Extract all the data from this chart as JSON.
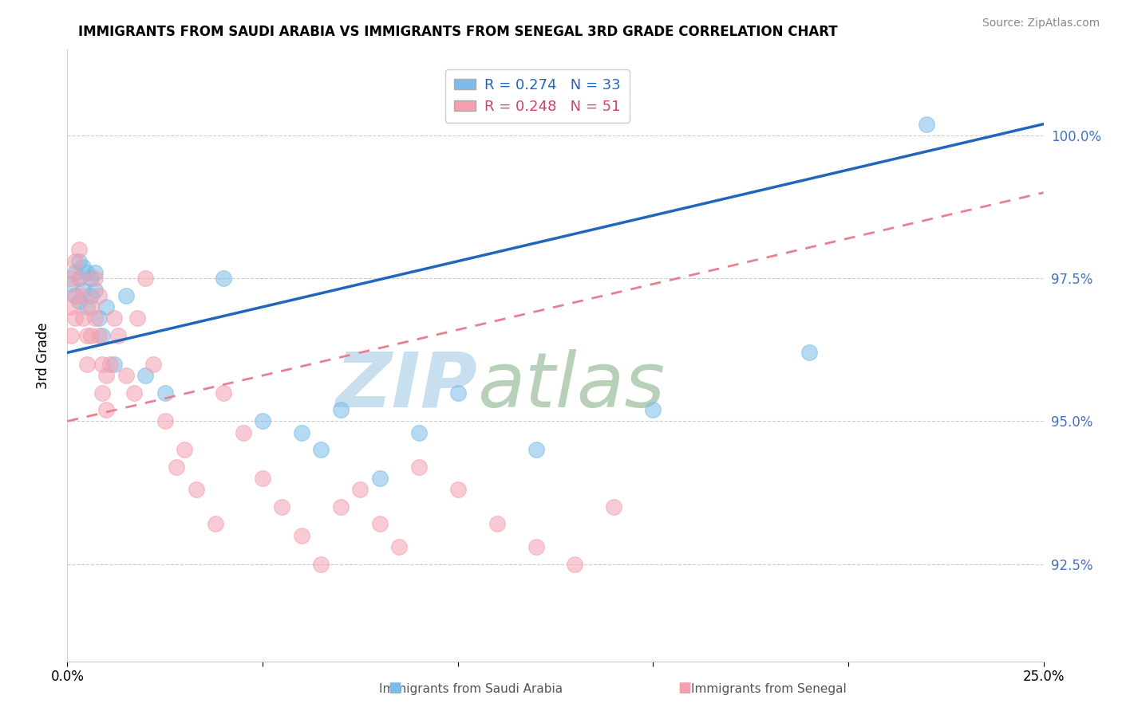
{
  "title": "IMMIGRANTS FROM SAUDI ARABIA VS IMMIGRANTS FROM SENEGAL 3RD GRADE CORRELATION CHART",
  "source": "Source: ZipAtlas.com",
  "ylabel": "3rd Grade",
  "ytick_labels": [
    "92.5%",
    "95.0%",
    "97.5%",
    "100.0%"
  ],
  "ytick_values": [
    0.925,
    0.95,
    0.975,
    1.0
  ],
  "xlim": [
    0.0,
    0.25
  ],
  "ylim": [
    0.908,
    1.015
  ],
  "R_saudi": 0.274,
  "N_saudi": 33,
  "R_senegal": 0.248,
  "N_senegal": 51,
  "saudi_color": "#7bbde8",
  "senegal_color": "#f4a0b0",
  "saudi_x": [
    0.001,
    0.002,
    0.002,
    0.003,
    0.003,
    0.003,
    0.004,
    0.004,
    0.005,
    0.005,
    0.006,
    0.006,
    0.007,
    0.007,
    0.008,
    0.009,
    0.01,
    0.012,
    0.015,
    0.02,
    0.025,
    0.04,
    0.05,
    0.06,
    0.065,
    0.07,
    0.08,
    0.09,
    0.1,
    0.12,
    0.15,
    0.19,
    0.22
  ],
  "saudi_y": [
    0.974,
    0.976,
    0.972,
    0.978,
    0.975,
    0.971,
    0.977,
    0.973,
    0.976,
    0.97,
    0.975,
    0.972,
    0.976,
    0.973,
    0.968,
    0.965,
    0.97,
    0.96,
    0.972,
    0.958,
    0.955,
    0.975,
    0.95,
    0.948,
    0.945,
    0.952,
    0.94,
    0.948,
    0.955,
    0.945,
    0.952,
    0.962,
    1.002
  ],
  "senegal_x": [
    0.001,
    0.001,
    0.001,
    0.002,
    0.002,
    0.002,
    0.003,
    0.003,
    0.004,
    0.004,
    0.005,
    0.005,
    0.006,
    0.006,
    0.007,
    0.007,
    0.008,
    0.008,
    0.009,
    0.009,
    0.01,
    0.01,
    0.011,
    0.012,
    0.013,
    0.015,
    0.017,
    0.018,
    0.02,
    0.022,
    0.025,
    0.028,
    0.03,
    0.033,
    0.038,
    0.04,
    0.045,
    0.05,
    0.055,
    0.06,
    0.065,
    0.07,
    0.075,
    0.08,
    0.085,
    0.09,
    0.1,
    0.11,
    0.12,
    0.13,
    0.14
  ],
  "senegal_y": [
    0.975,
    0.97,
    0.965,
    0.978,
    0.972,
    0.968,
    0.98,
    0.975,
    0.972,
    0.968,
    0.965,
    0.96,
    0.97,
    0.965,
    0.975,
    0.968,
    0.972,
    0.965,
    0.96,
    0.955,
    0.958,
    0.952,
    0.96,
    0.968,
    0.965,
    0.958,
    0.955,
    0.968,
    0.975,
    0.96,
    0.95,
    0.942,
    0.945,
    0.938,
    0.932,
    0.955,
    0.948,
    0.94,
    0.935,
    0.93,
    0.925,
    0.935,
    0.938,
    0.932,
    0.928,
    0.942,
    0.938,
    0.932,
    0.928,
    0.925,
    0.935
  ],
  "trend_saudi_x0": 0.0,
  "trend_saudi_y0": 0.962,
  "trend_saudi_x1": 0.25,
  "trend_saudi_y1": 1.002,
  "trend_senegal_x0": 0.0,
  "trend_senegal_y0": 0.95,
  "trend_senegal_x1": 0.25,
  "trend_senegal_y1": 0.99,
  "watermark_zip": "ZIP",
  "watermark_atlas": "atlas",
  "watermark_color_zip": "#c8dff0",
  "watermark_color_atlas": "#b8d0b8"
}
